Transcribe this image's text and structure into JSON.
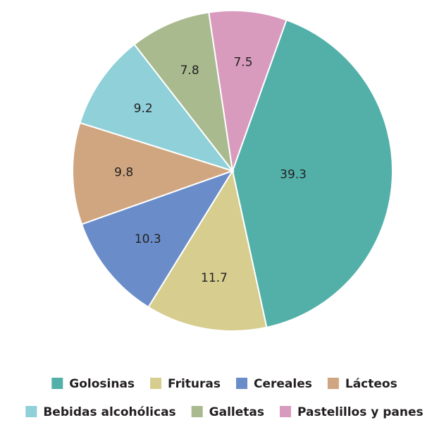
{
  "chart_data": {
    "type": "pie",
    "categories": [
      "Golosinas",
      "Frituras",
      "Cereales",
      "Lácteos",
      "Bebidas alcohólicas",
      "Galletas",
      "Pastelillos y panes"
    ],
    "values": [
      39.3,
      11.7,
      10.3,
      9.8,
      9.2,
      7.8,
      7.5
    ],
    "colors": [
      "#52b0a9",
      "#d6cd8f",
      "#6a8dc9",
      "#cfa680",
      "#8fd0d9",
      "#a9ba8f",
      "#d89bbd"
    ],
    "legend": "bottom"
  }
}
